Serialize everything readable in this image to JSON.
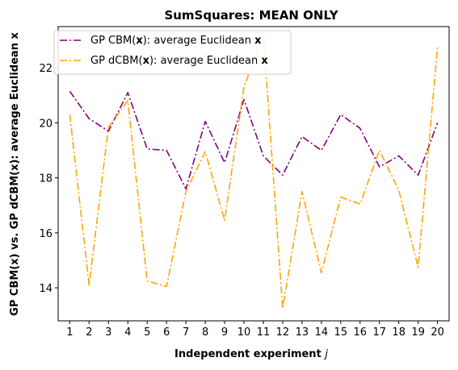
{
  "chart_data": {
    "type": "line",
    "title": "SumSquares: MEAN ONLY",
    "xlabel_text": "Independent experiment ",
    "xlabel_var": "j",
    "ylabel": "GP CBM(x) vs. GP dCBM(x): average Euclidean x",
    "categories": [
      1,
      2,
      3,
      4,
      5,
      6,
      7,
      8,
      9,
      10,
      11,
      12,
      13,
      14,
      15,
      16,
      17,
      18,
      19,
      20
    ],
    "xlim": [
      0.4,
      20.6
    ],
    "ylim": [
      12.8,
      23.5
    ],
    "yticks": [
      14,
      16,
      18,
      20,
      22
    ],
    "grid": false,
    "legend_position": "top-left",
    "series": [
      {
        "label_prefix": "GP CBM(",
        "label_x": "x",
        "label_mid": "): average Euclidean ",
        "label_suffix": "x",
        "color": "#800080",
        "values": [
          21.15,
          20.15,
          19.7,
          21.1,
          19.05,
          19.0,
          17.6,
          20.05,
          18.55,
          20.85,
          18.8,
          18.1,
          19.5,
          19.0,
          20.3,
          19.8,
          18.4,
          18.8,
          18.1,
          20.0
        ]
      },
      {
        "label_prefix": "GP dCBM(",
        "label_x": "x",
        "label_mid": "): average Euclidean ",
        "label_suffix": "x",
        "color": "#FFA500",
        "values": [
          20.3,
          14.1,
          19.85,
          20.8,
          14.25,
          14.05,
          17.5,
          18.95,
          16.45,
          21.3,
          23.2,
          13.25,
          17.5,
          14.55,
          17.3,
          17.05,
          19.0,
          17.55,
          14.75,
          22.75
        ]
      }
    ]
  }
}
